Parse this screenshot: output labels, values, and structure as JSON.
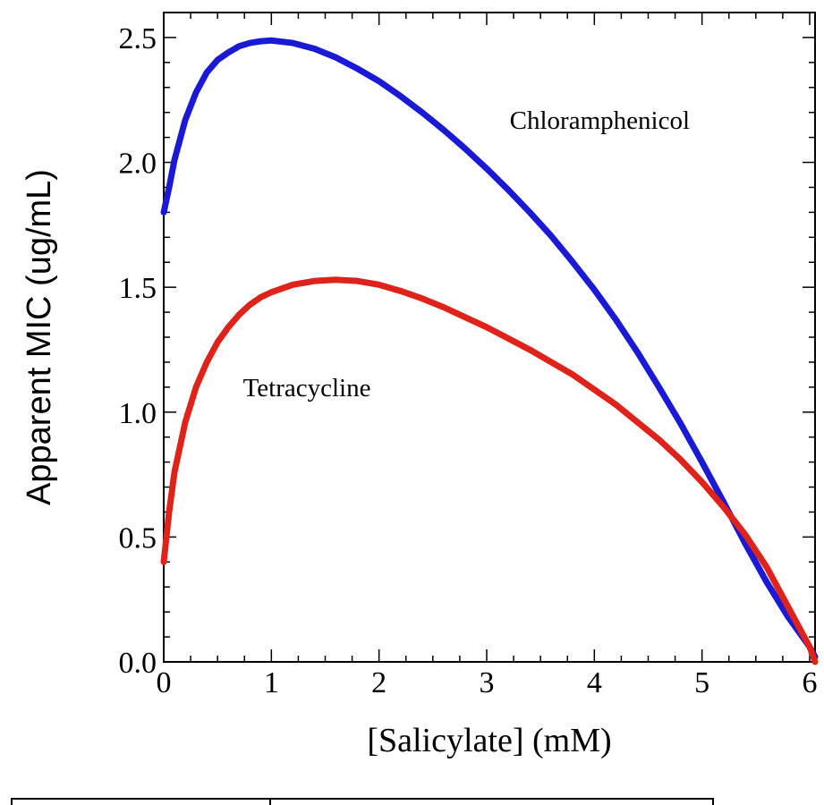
{
  "chart_data": {
    "type": "line",
    "title": "",
    "xlabel": "[Salicylate] (mM)",
    "ylabel": "Apparent MIC (ug/mL)",
    "xlim": [
      0,
      6.05
    ],
    "ylim": [
      0,
      2.6
    ],
    "x_ticks": [
      0,
      1,
      2,
      3,
      4,
      5,
      6
    ],
    "x_tick_labels": [
      "0",
      "1",
      "2",
      "3",
      "4",
      "5",
      "6"
    ],
    "y_ticks": [
      0,
      0.5,
      1.0,
      1.5,
      2.0,
      2.5
    ],
    "y_tick_labels": [
      "0.0",
      "0.5",
      "1.0",
      "1.5",
      "2.0",
      "2.5"
    ],
    "grid": false,
    "series": [
      {
        "name": "Chloramphenicol",
        "color": "#1a1ad6",
        "x": [
          0,
          0.05,
          0.1,
          0.2,
          0.3,
          0.4,
          0.5,
          0.6,
          0.7,
          0.8,
          0.9,
          1.0,
          1.2,
          1.4,
          1.6,
          1.8,
          2.0,
          2.2,
          2.4,
          2.6,
          2.8,
          3.0,
          3.2,
          3.4,
          3.6,
          3.8,
          4.0,
          4.2,
          4.4,
          4.6,
          4.8,
          5.0,
          5.2,
          5.4,
          5.6,
          5.8,
          5.9,
          6.0,
          6.05
        ],
        "y": [
          1.8,
          1.9,
          2.01,
          2.17,
          2.28,
          2.36,
          2.41,
          2.44,
          2.465,
          2.478,
          2.485,
          2.488,
          2.478,
          2.455,
          2.42,
          2.375,
          2.325,
          2.265,
          2.2,
          2.13,
          2.055,
          1.975,
          1.89,
          1.8,
          1.705,
          1.6,
          1.49,
          1.37,
          1.24,
          1.1,
          0.955,
          0.8,
          0.64,
          0.475,
          0.32,
          0.18,
          0.12,
          0.06,
          0.02
        ]
      },
      {
        "name": "Tetracycline",
        "color": "#e0231a",
        "x": [
          0,
          0.05,
          0.1,
          0.2,
          0.3,
          0.4,
          0.5,
          0.6,
          0.7,
          0.8,
          0.9,
          1.0,
          1.2,
          1.4,
          1.6,
          1.8,
          2.0,
          2.2,
          2.4,
          2.6,
          2.8,
          3.0,
          3.2,
          3.4,
          3.6,
          3.8,
          4.0,
          4.2,
          4.4,
          4.6,
          4.8,
          5.0,
          5.2,
          5.4,
          5.6,
          5.8,
          5.9,
          6.0,
          6.05
        ],
        "y": [
          0.4,
          0.6,
          0.76,
          0.96,
          1.1,
          1.2,
          1.28,
          1.34,
          1.39,
          1.43,
          1.46,
          1.48,
          1.51,
          1.525,
          1.53,
          1.525,
          1.51,
          1.485,
          1.455,
          1.42,
          1.38,
          1.34,
          1.295,
          1.25,
          1.2,
          1.15,
          1.09,
          1.03,
          0.96,
          0.89,
          0.81,
          0.72,
          0.62,
          0.51,
          0.38,
          0.22,
          0.14,
          0.06,
          0.0
        ]
      }
    ],
    "annotations": [
      {
        "text": "Chloramphenicol",
        "x": 4.05,
        "y": 2.17
      },
      {
        "text": "Tetracycline",
        "x": 1.33,
        "y": 1.1
      }
    ]
  }
}
